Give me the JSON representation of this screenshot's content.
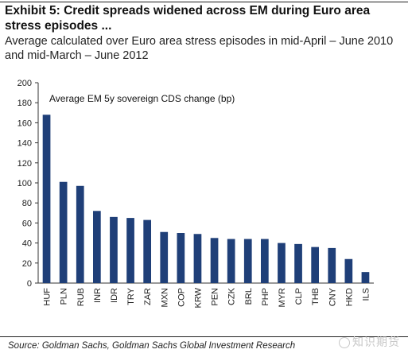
{
  "header": {
    "title": "Exhibit 5: Credit spreads widened across EM during Euro area stress episodes ...",
    "subtitle": "Average calculated over Euro area stress episodes in mid-April – June 2010 and mid-March – June 2012"
  },
  "footer": {
    "source": "Source: Goldman Sachs, Goldman Sachs Global Investment Research",
    "watermark": "知识期货"
  },
  "colors": {
    "bar": "#1f3f78",
    "axis": "#333333"
  },
  "chart_data": {
    "type": "bar",
    "title": "Average EM 5y sovereign CDS change (bp)",
    "xlabel": "",
    "ylabel": "",
    "ylim": [
      0,
      200
    ],
    "yticks": [
      0,
      20,
      40,
      60,
      80,
      100,
      120,
      140,
      160,
      180,
      200
    ],
    "categories": [
      "HUF",
      "PLN",
      "RUB",
      "INR",
      "IDR",
      "TRY",
      "ZAR",
      "MXN",
      "COP",
      "KRW",
      "PEN",
      "CZK",
      "BRL",
      "PHP",
      "MYR",
      "CLP",
      "THB",
      "CNY",
      "HKD",
      "ILS"
    ],
    "values": [
      168,
      101,
      97,
      72,
      66,
      65,
      63,
      51,
      50,
      49,
      45,
      44,
      44,
      44,
      40,
      39,
      36,
      35,
      24,
      11
    ],
    "grid": false,
    "legend": "none"
  }
}
